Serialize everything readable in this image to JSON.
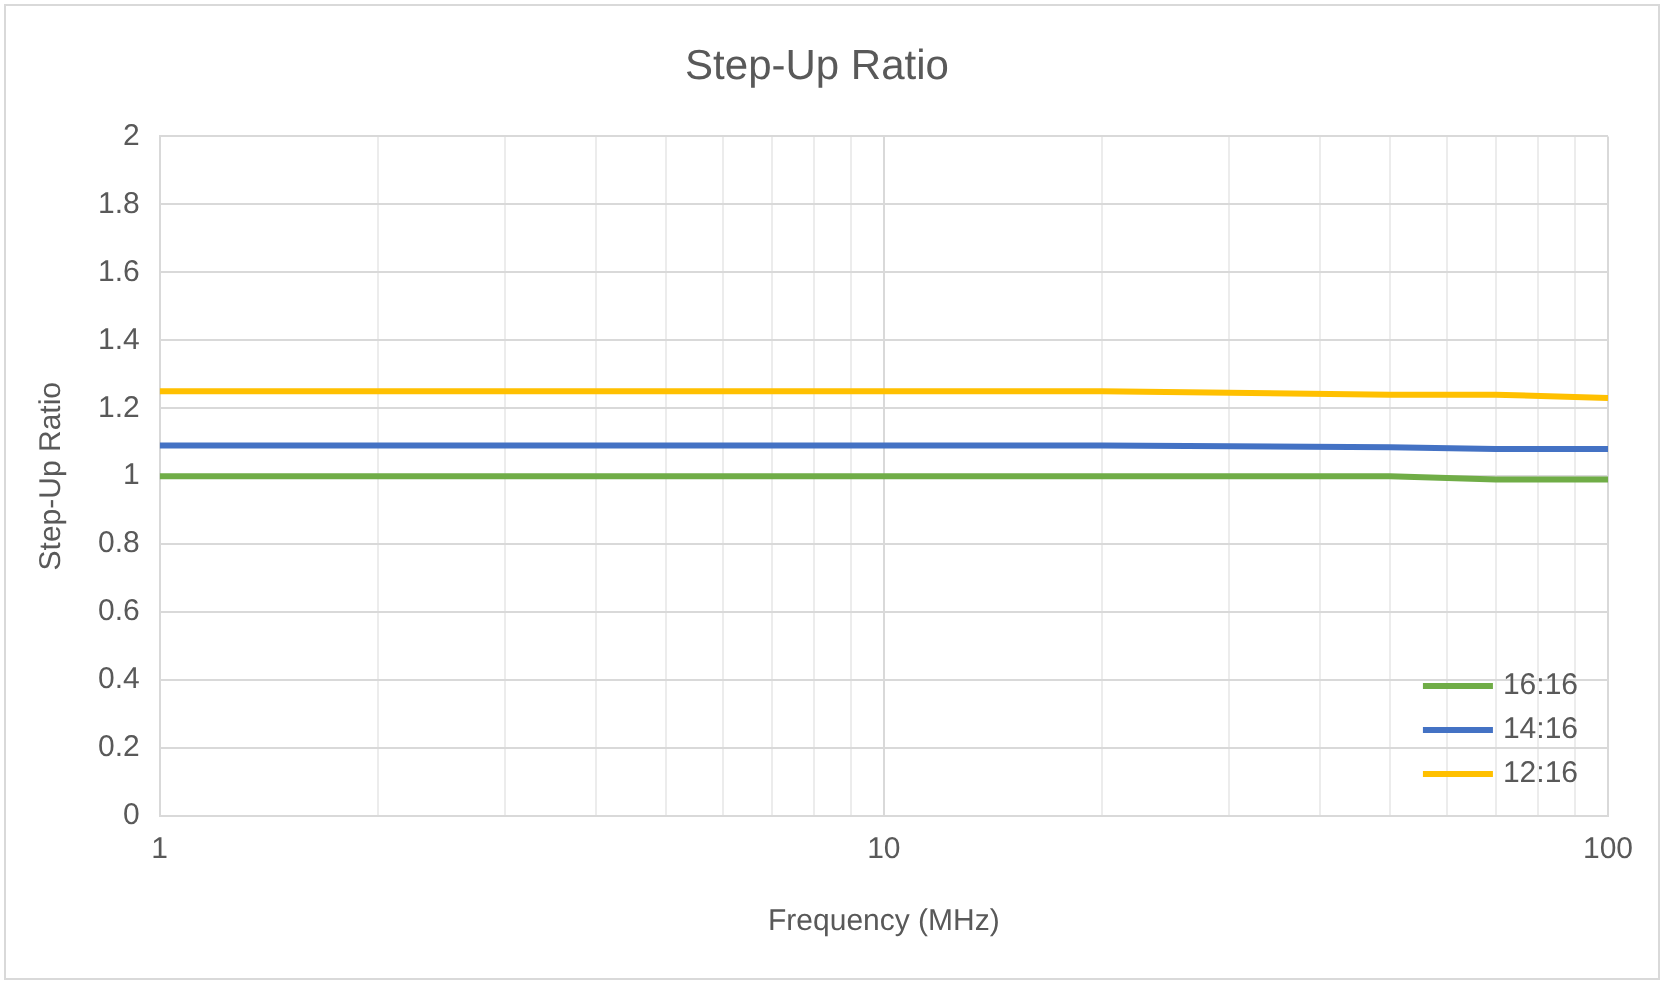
{
  "chart_data": {
    "type": "line",
    "title": "Step-Up Ratio",
    "xlabel": "Frequency (MHz)",
    "ylabel": "Step-Up Ratio",
    "x": [
      1,
      2,
      5,
      10,
      20,
      50,
      70,
      100
    ],
    "series": [
      {
        "name": "16:16",
        "color": "#70ad47",
        "values": [
          1.0,
          1.0,
          1.0,
          1.0,
          1.0,
          1.0,
          0.99,
          0.99
        ]
      },
      {
        "name": "14:16",
        "color": "#4472c4",
        "values": [
          1.09,
          1.09,
          1.09,
          1.09,
          1.09,
          1.085,
          1.08,
          1.08
        ]
      },
      {
        "name": "12:16",
        "color": "#ffc000",
        "values": [
          1.25,
          1.25,
          1.25,
          1.25,
          1.25,
          1.24,
          1.24,
          1.23
        ]
      }
    ],
    "log": "x",
    "xlim": [
      1,
      100
    ],
    "xticks": [
      1,
      {
        "value": 2,
        "label": null
      },
      {
        "value": 3,
        "label": null
      },
      {
        "value": 4,
        "label": null
      },
      {
        "value": 5,
        "label": null
      },
      {
        "value": 6,
        "label": null
      },
      {
        "value": 7,
        "label": null
      },
      {
        "value": 8,
        "label": null
      },
      {
        "value": 9,
        "label": null
      },
      10,
      {
        "value": 20,
        "label": null
      },
      {
        "value": 30,
        "label": null
      },
      {
        "value": 40,
        "label": null
      },
      {
        "value": 50,
        "label": null
      },
      {
        "value": 60,
        "label": null
      },
      {
        "value": 70,
        "label": null
      },
      {
        "value": 80,
        "label": null
      },
      {
        "value": 90,
        "label": null
      },
      100
    ],
    "ylim": [
      0,
      2
    ],
    "yticks": [
      0,
      0.2,
      0.4,
      0.6,
      0.8,
      1,
      1.2,
      1.4,
      1.6,
      1.8,
      2
    ],
    "grid": true,
    "legend": "bottom right",
    "marker": "none",
    "line_style": "solid"
  }
}
